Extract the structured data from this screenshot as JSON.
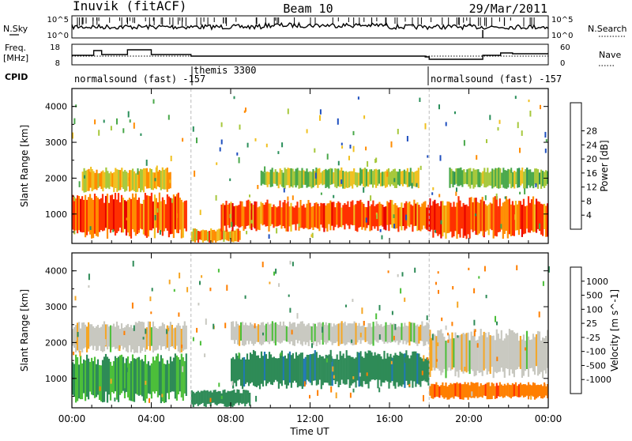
{
  "header": {
    "station": "Inuvik (fitACF)",
    "beam": "Beam 10",
    "date": "29/Mar/2011"
  },
  "noise_panel": {
    "left_label": "N.Sky",
    "left_ticks": [
      "10^5",
      "10^0"
    ],
    "right_label": "N.Search",
    "right_ticks": [
      "10^5",
      "10^0"
    ]
  },
  "freq_panel": {
    "left_label_1": "Freq.",
    "left_label_2": "[MHz]",
    "left_ticks": [
      "18",
      "8"
    ],
    "right_label": "Nave",
    "right_ticks": [
      "60",
      "0"
    ]
  },
  "cpid_panel": {
    "label": "CPID",
    "segments": [
      {
        "name": "normalsound (fast) -157",
        "start_hour": 0.0
      },
      {
        "name": "themis 3300",
        "start_hour": 6.0
      },
      {
        "name": "normalsound (fast) -157",
        "start_hour": 18.0
      }
    ]
  },
  "x_axis": {
    "label": "Time UT",
    "range_hours": [
      0,
      24
    ],
    "ticks": [
      {
        "hour": 0,
        "label": "00:00"
      },
      {
        "hour": 4,
        "label": "04:00"
      },
      {
        "hour": 8,
        "label": "08:00"
      },
      {
        "hour": 12,
        "label": "12:00"
      },
      {
        "hour": 16,
        "label": "16:00"
      },
      {
        "hour": 20,
        "label": "20:00"
      },
      {
        "hour": 24,
        "label": "00:00"
      }
    ]
  },
  "chart_data": [
    {
      "type": "heatmap",
      "id": "power",
      "ylabel": "Slant Range [km]",
      "ylim": [
        180,
        4500
      ],
      "yticks": [
        1000,
        2000,
        3000,
        4000
      ],
      "colorbar_label": "Power [dB]",
      "colorbar": {
        "ticks": [
          "4",
          "8",
          "12",
          "16",
          "20",
          "24",
          "28"
        ],
        "colors": [
          "#1010ff",
          "#1f4fbf",
          "#2a8f5a",
          "#49a84a",
          "#a6c83c",
          "#f0c020",
          "#ff8c00",
          "#ff3000",
          "#e60000"
        ]
      },
      "bands": [
        {
          "t0": 0.0,
          "t1": 5.8,
          "r0": 300,
          "r1": 1600,
          "value": 28
        },
        {
          "t0": 0.5,
          "t1": 5.0,
          "r0": 1600,
          "r1": 2300,
          "value": 22
        },
        {
          "t0": 6.0,
          "t1": 8.5,
          "r0": 200,
          "r1": 600,
          "value": 24
        },
        {
          "t0": 7.5,
          "t1": 18.0,
          "r0": 500,
          "r1": 1400,
          "value": 28
        },
        {
          "t0": 9.5,
          "t1": 17.5,
          "r0": 1700,
          "r1": 2300,
          "value": 18
        },
        {
          "t0": 18.0,
          "t1": 24.0,
          "r0": 300,
          "r1": 1500,
          "value": 28
        },
        {
          "t0": 19.0,
          "t1": 24.0,
          "r0": 1700,
          "r1": 2300,
          "value": 16
        }
      ]
    },
    {
      "type": "heatmap",
      "id": "velocity",
      "ylabel": "Slant Range [km]",
      "ylim": [
        180,
        4500
      ],
      "yticks": [
        1000,
        2000,
        3000,
        4000
      ],
      "colorbar_label": "Velocity [m s^-1]",
      "colorbar": {
        "ticks": [
          "1000",
          "500",
          "100",
          "25",
          "-25",
          "-100",
          "-500",
          "-1000"
        ],
        "colors": [
          "#1a3fb0",
          "#1f78b4",
          "#2e8b57",
          "#4cbf3a",
          "#c8c8c0",
          "#f5a623",
          "#ff7f00",
          "#ff3000",
          "#e60000"
        ]
      },
      "bands": [
        {
          "t0": 0.0,
          "t1": 5.8,
          "r0": 300,
          "r1": 1700,
          "value": 100
        },
        {
          "t0": 0.0,
          "t1": 5.8,
          "r0": 1700,
          "r1": 2600,
          "value": 0
        },
        {
          "t0": 6.0,
          "t1": 9.0,
          "r0": 200,
          "r1": 700,
          "value": 300
        },
        {
          "t0": 8.0,
          "t1": 18.0,
          "r0": 700,
          "r1": 1800,
          "value": 400
        },
        {
          "t0": 8.0,
          "t1": 18.0,
          "r0": 1900,
          "r1": 2600,
          "value": 0
        },
        {
          "t0": 18.0,
          "t1": 24.0,
          "r0": 400,
          "r1": 900,
          "value": -400
        },
        {
          "t0": 18.0,
          "t1": 24.0,
          "r0": 1000,
          "r1": 2400,
          "value": 0
        }
      ]
    }
  ]
}
